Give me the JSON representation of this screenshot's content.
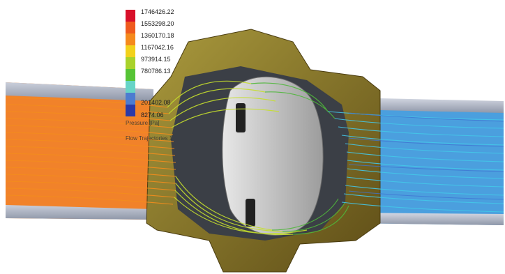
{
  "legend": {
    "colors": [
      "#d8102a",
      "#ef5a1e",
      "#f58a1d",
      "#f2d11b",
      "#a9d22b",
      "#56c436",
      "#67d4c7",
      "#4c7cd0",
      "#2b3aa7"
    ],
    "values": [
      "1746426.22",
      "1553298.20",
      "1360170.18",
      "1167042.16",
      "973914.15",
      "780786.13",
      "",
      "201402.08",
      "8274.06"
    ]
  },
  "captions": {
    "pressure": "Pressure [Pa]",
    "flow_trajectories": "Flow Trajectories 1"
  },
  "scene": {
    "description_colors": {
      "inlet_flow": "#f07b1f",
      "outlet_flow": "#2c8ed8",
      "valve_body": "#6b5a1f",
      "flange": "#8e7a28",
      "pipe": "#9fa6b6"
    }
  }
}
